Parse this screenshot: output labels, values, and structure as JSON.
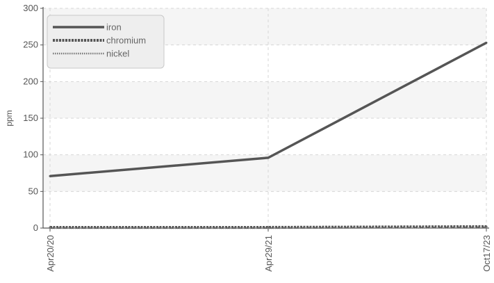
{
  "chart_data": {
    "type": "line",
    "title": "",
    "xlabel": "",
    "ylabel": "ppm",
    "x": [
      "Apr20/20",
      "Apr29/21",
      "Oct17/23"
    ],
    "ylim": [
      0,
      300
    ],
    "yticks": [
      0,
      50,
      100,
      150,
      200,
      250,
      300
    ],
    "grid": true,
    "legend_position": "top-left",
    "series": [
      {
        "name": "iron",
        "values": [
          71,
          96,
          253
        ],
        "color": "#555555",
        "style": "solid"
      },
      {
        "name": "chromium",
        "values": [
          1,
          1,
          2
        ],
        "color": "#555555",
        "style": "dashed-thick"
      },
      {
        "name": "nickel",
        "values": [
          0,
          0,
          1
        ],
        "color": "#777777",
        "style": "dotted"
      }
    ]
  }
}
